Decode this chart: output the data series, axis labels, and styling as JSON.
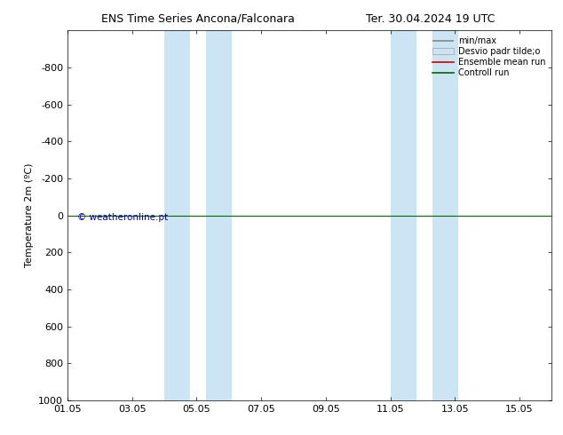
{
  "title_left": "ENS Time Series Ancona/Falconara",
  "title_right": "Ter. 30.04.2024 19 UTC",
  "ylabel": "Temperature 2m (ºC)",
  "ylim_bottom": -1000,
  "ylim_top": 1000,
  "yticks": [
    -800,
    -600,
    -400,
    -200,
    0,
    200,
    400,
    600,
    800,
    1000
  ],
  "xtick_labels": [
    "01.05",
    "03.05",
    "05.05",
    "07.05",
    "09.05",
    "11.05",
    "13.05",
    "15.05"
  ],
  "xtick_positions": [
    0,
    2,
    4,
    6,
    8,
    10,
    12,
    14
  ],
  "xlim": [
    0,
    15
  ],
  "shaded_bands": [
    {
      "xmin": 3.0,
      "xmax": 3.8
    },
    {
      "xmin": 4.3,
      "xmax": 5.1
    },
    {
      "xmin": 10.0,
      "xmax": 10.8
    },
    {
      "xmin": 11.3,
      "xmax": 12.1
    }
  ],
  "hline_y": 0,
  "control_run_color": "#006600",
  "ensemble_mean_color": "#cc0000",
  "minmax_color": "#888888",
  "shade_color": "#cce5f5",
  "watermark": "© weatheronline.pt",
  "watermark_color": "#0000bb",
  "background_color": "#ffffff",
  "legend_labels": [
    "min/max",
    "Desvio padr tilde;o",
    "Ensemble mean run",
    "Controll run"
  ],
  "fontsize": 8,
  "title_fontsize": 9,
  "figwidth": 6.34,
  "figheight": 4.9,
  "dpi": 100
}
